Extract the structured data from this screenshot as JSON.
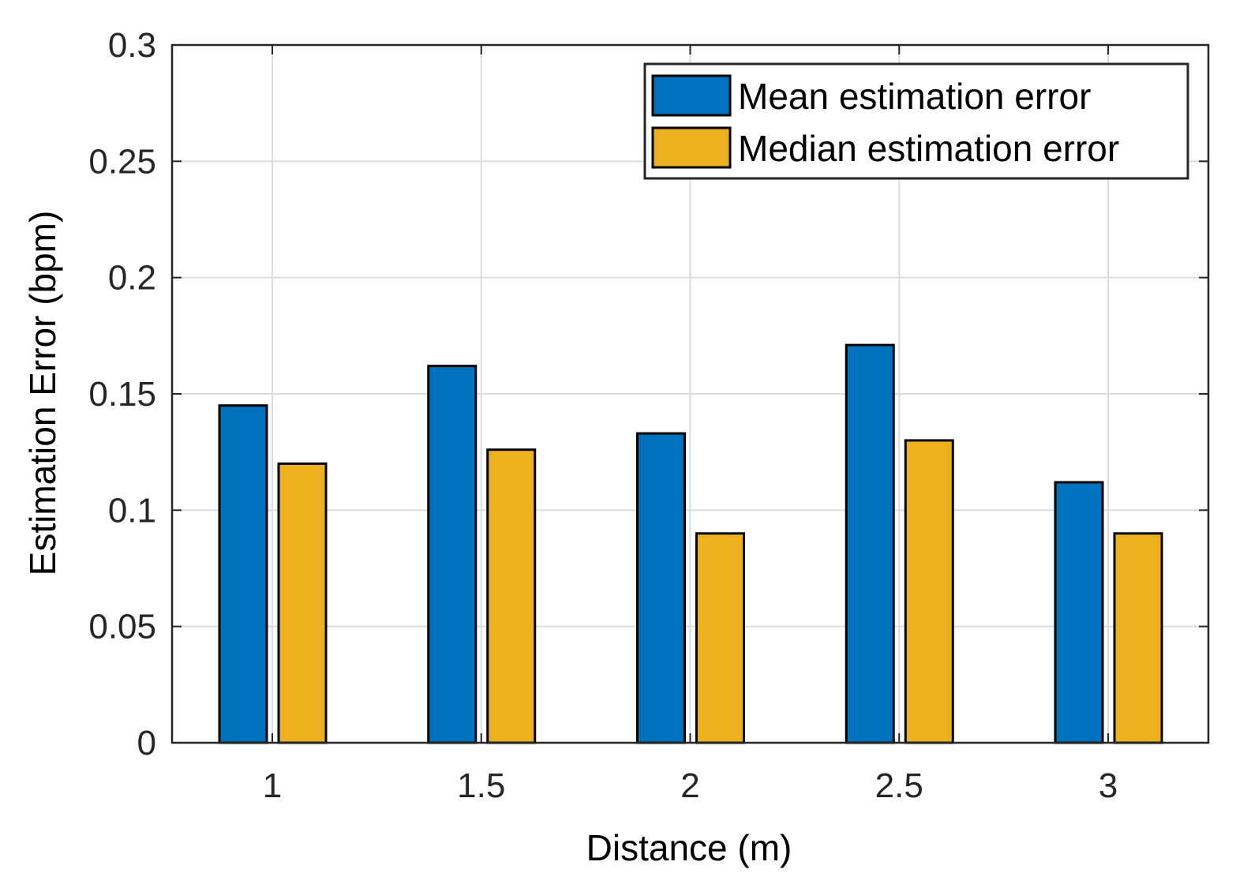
{
  "chart_data": {
    "type": "bar",
    "title": "",
    "xlabel": "Distance (m)",
    "ylabel": "Estimation Error (bpm)",
    "categories": [
      "1",
      "1.5",
      "2",
      "2.5",
      "3"
    ],
    "series": [
      {
        "name": "Mean estimation error",
        "color": "#0072BD",
        "values": [
          0.145,
          0.162,
          0.133,
          0.171,
          0.112
        ]
      },
      {
        "name": "Median estimation error",
        "color": "#EDB120",
        "values": [
          0.12,
          0.126,
          0.09,
          0.13,
          0.09
        ]
      }
    ],
    "ylim": [
      0,
      0.3
    ],
    "yticks": [
      "0",
      "0.05",
      "0.1",
      "0.15",
      "0.2",
      "0.25",
      "0.3"
    ],
    "grid": true,
    "legend_position": "top-right"
  }
}
